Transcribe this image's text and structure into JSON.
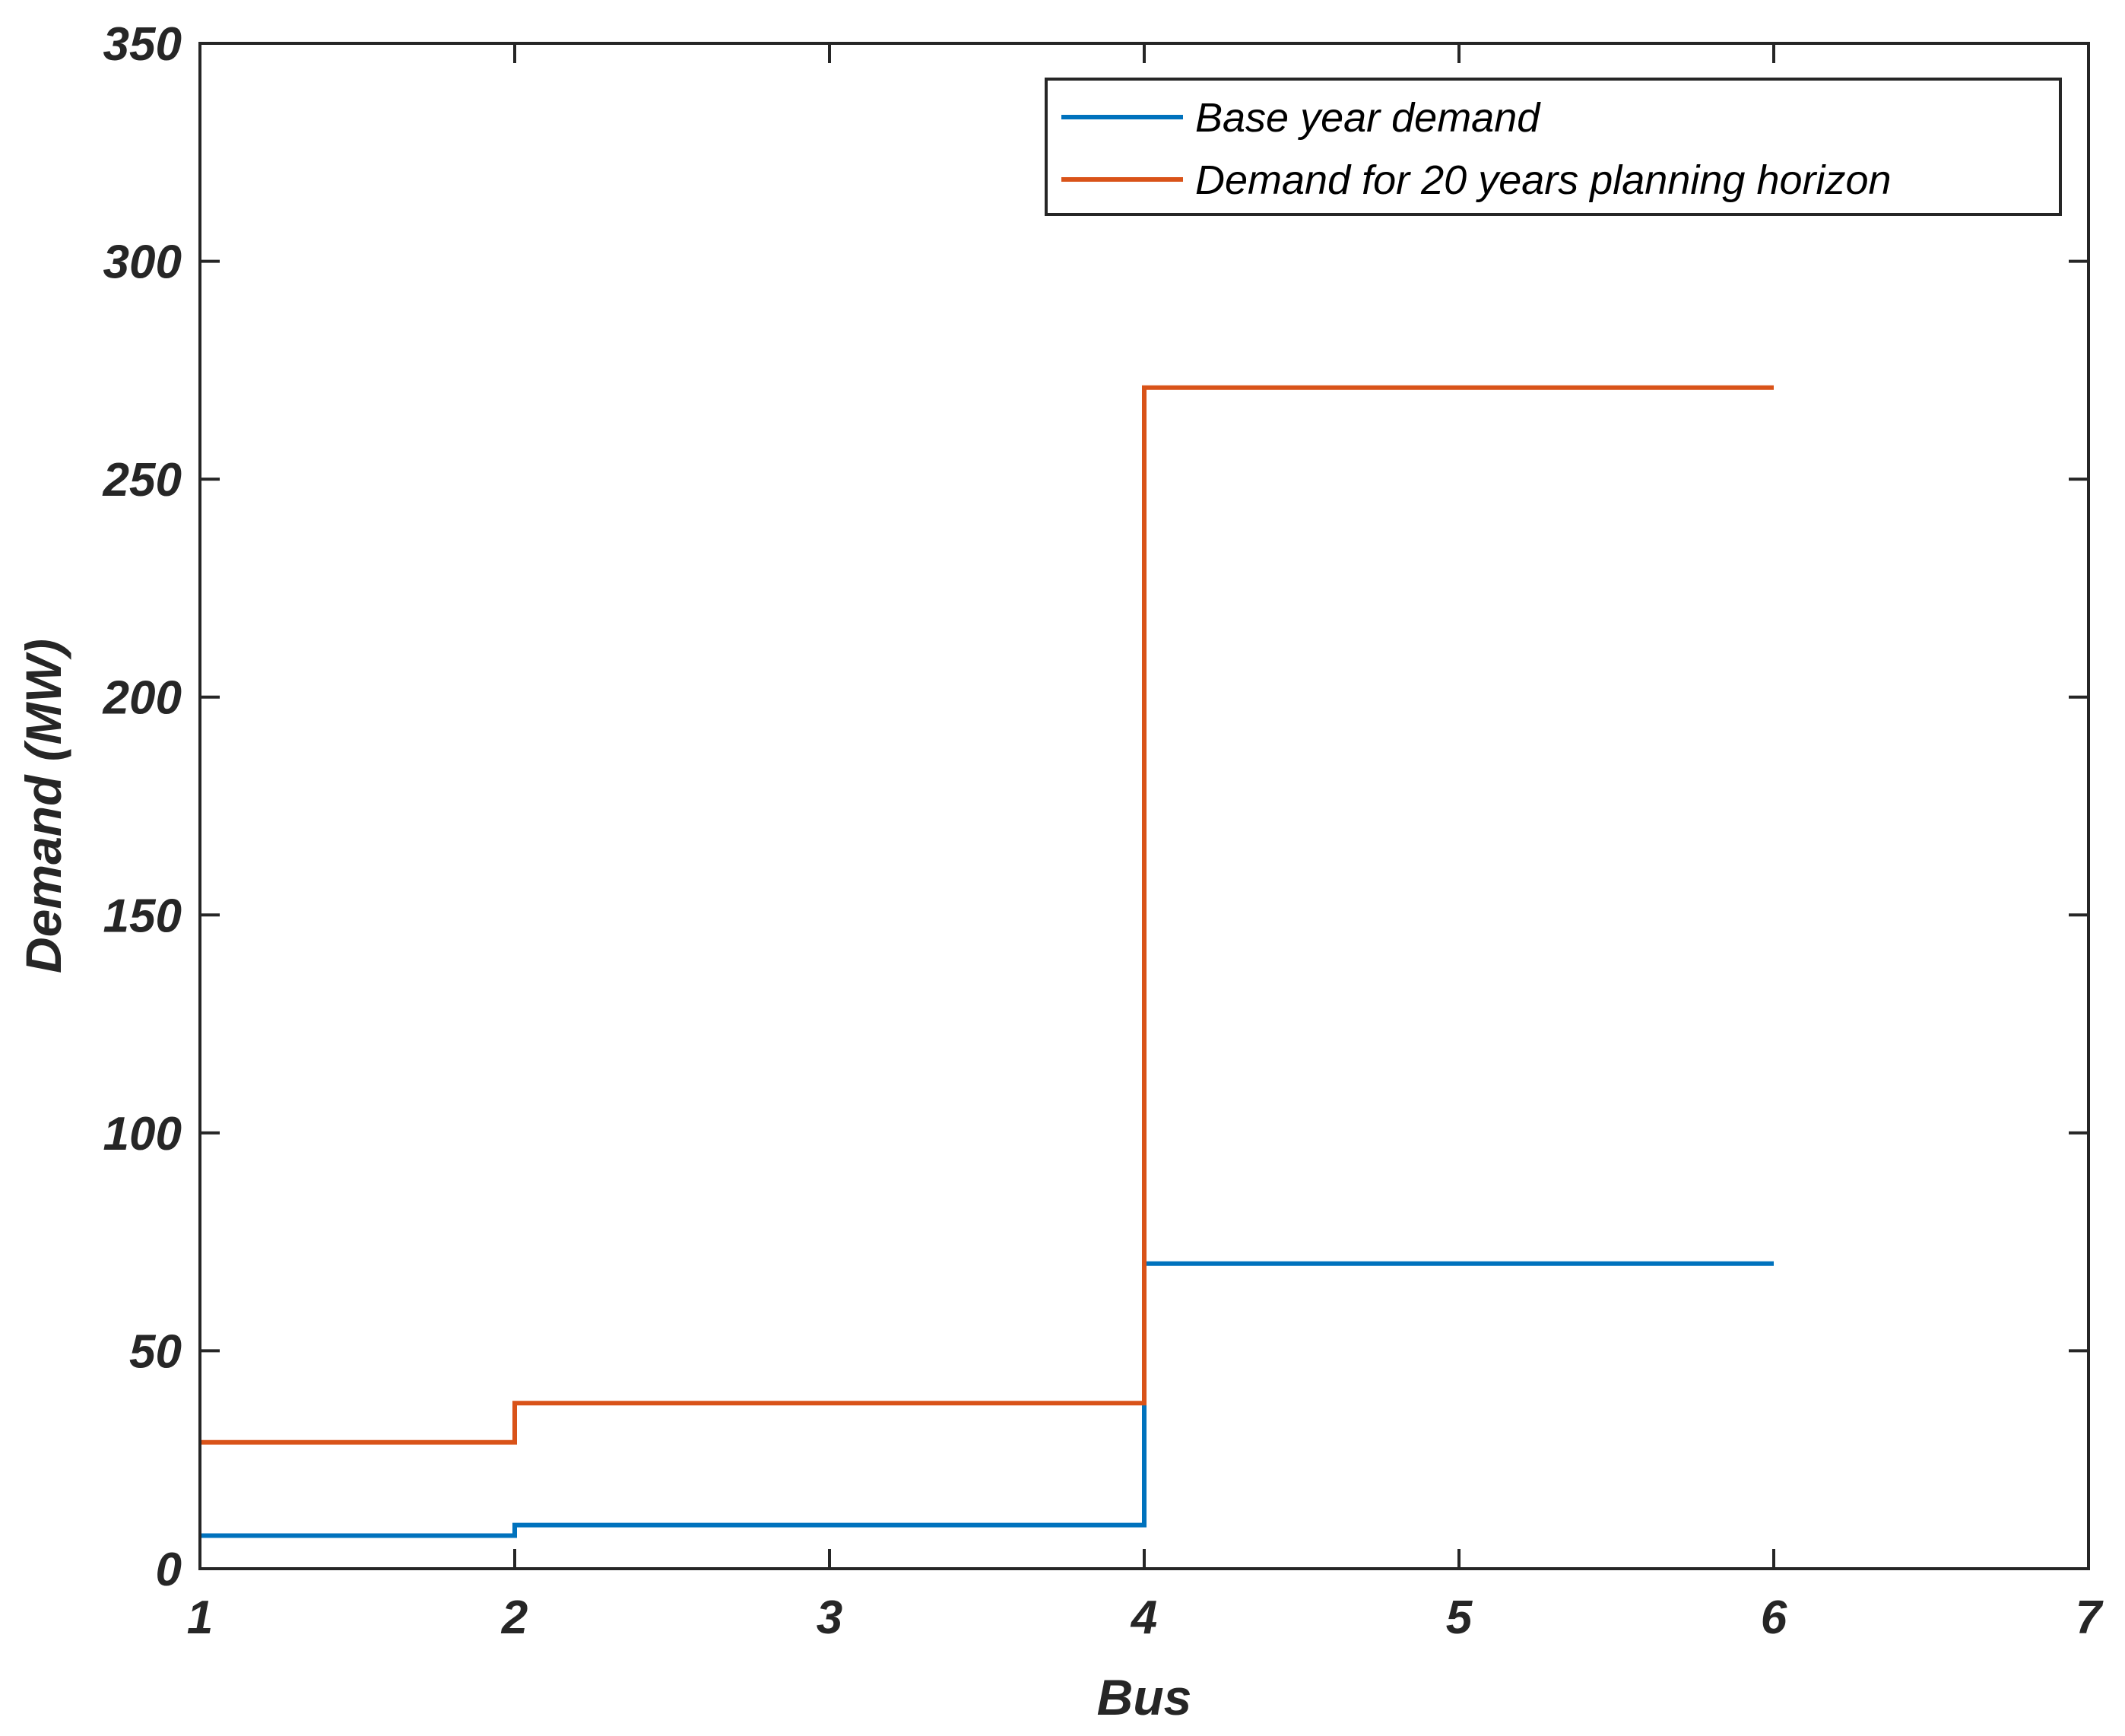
{
  "chart_data": {
    "type": "line",
    "step": "post",
    "title": "",
    "xlabel": "Bus",
    "ylabel": "Demand (MW)",
    "xlim": [
      1,
      7
    ],
    "ylim": [
      0,
      350
    ],
    "xticks": [
      1,
      2,
      3,
      4,
      5,
      6,
      7
    ],
    "yticks": [
      0,
      50,
      100,
      150,
      200,
      250,
      300,
      350
    ],
    "xtick_labels": [
      "1",
      "2",
      "3",
      "4",
      "5",
      "6",
      "7"
    ],
    "ytick_labels": [
      "0",
      "50",
      "100",
      "150",
      "200",
      "250",
      "300",
      "350"
    ],
    "grid": false,
    "legend_position": "top-right",
    "x": [
      1,
      2,
      3,
      4,
      5,
      6
    ],
    "series": [
      {
        "name": "Base year demand",
        "color": "#0072BD",
        "values": [
          7.6,
          10,
          10,
          70,
          70,
          70
        ]
      },
      {
        "name": "Demand for 20 years planning horizon",
        "color": "#D95319",
        "values": [
          29,
          38,
          38,
          271,
          271,
          271
        ]
      }
    ]
  }
}
